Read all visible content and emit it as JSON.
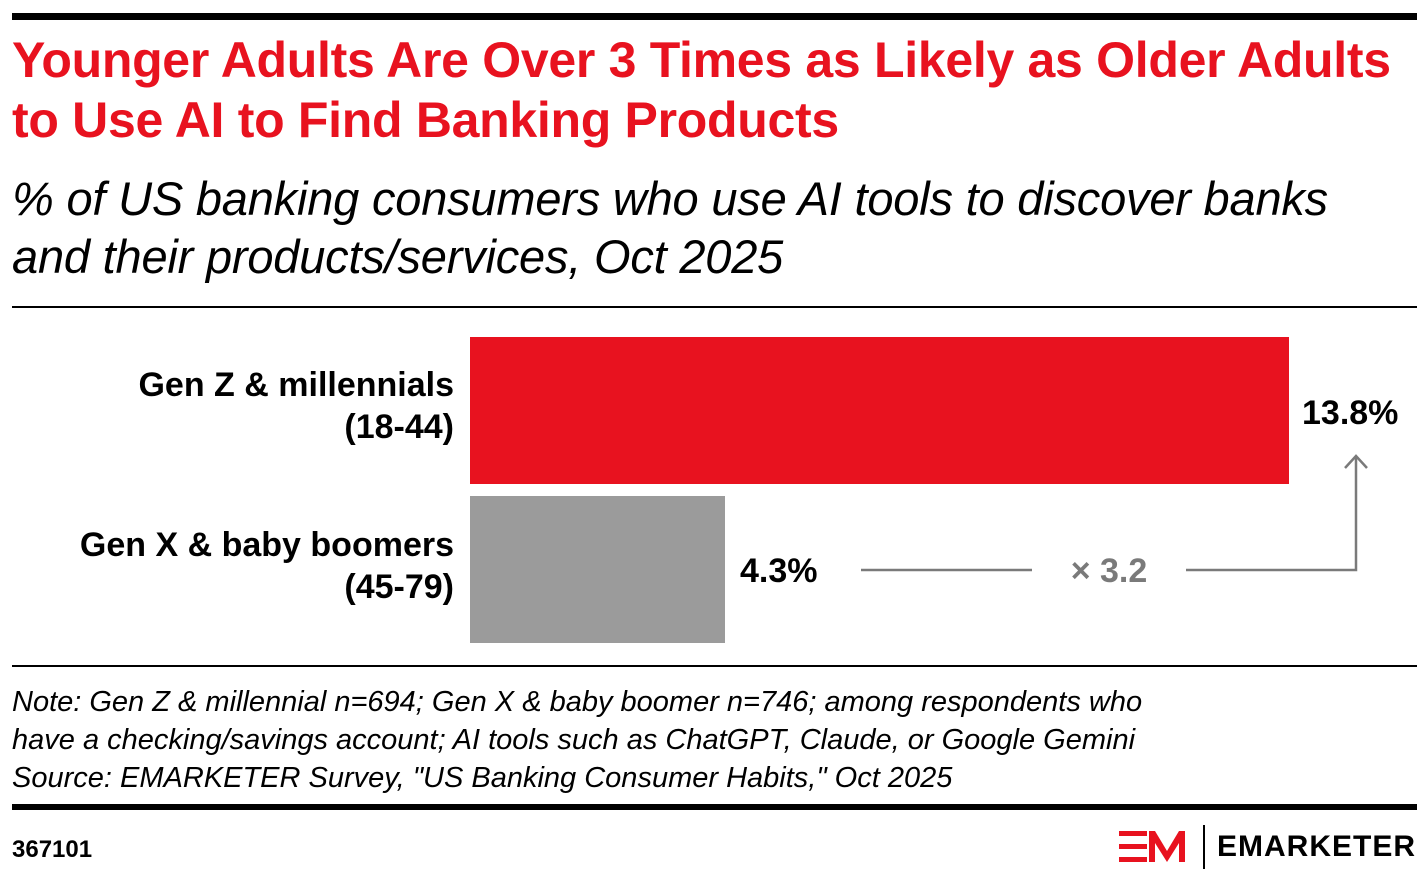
{
  "header": {
    "title": "Younger Adults Are Over 3 Times as Likely as Older Adults to Use AI to Find Banking Products",
    "subtitle": "% of US banking consumers who use AI tools to discover banks and their products/services, Oct 2025"
  },
  "chart_data": {
    "type": "bar",
    "orientation": "horizontal",
    "categories": [
      "Gen Z & millennials (18-44)",
      "Gen X & baby boomers (45-79)"
    ],
    "category_lines": [
      [
        "Gen Z & millennials",
        "(18-44)"
      ],
      [
        "Gen X & baby boomers",
        "(45-79)"
      ]
    ],
    "values": [
      13.8,
      4.3
    ],
    "value_labels": [
      "13.8%",
      "4.3%"
    ],
    "colors": [
      "#e8121f",
      "#9b9b9b"
    ],
    "annotation": "× 3.2",
    "xlim": [
      0,
      13.8
    ],
    "grid": false
  },
  "footer": {
    "note_lines": [
      "Note: Gen Z & millennial n=694; Gen X & baby boomer n=746; among respondents who",
      "have a checking/savings account; AI tools such as ChatGPT, Claude, or Google Gemini",
      "Source: EMARKETER Survey, \"US Banking Consumer Habits,\" Oct 2025"
    ],
    "chart_id": "367101",
    "brand": "EMARKETER",
    "brand_color": "#e8121f"
  }
}
